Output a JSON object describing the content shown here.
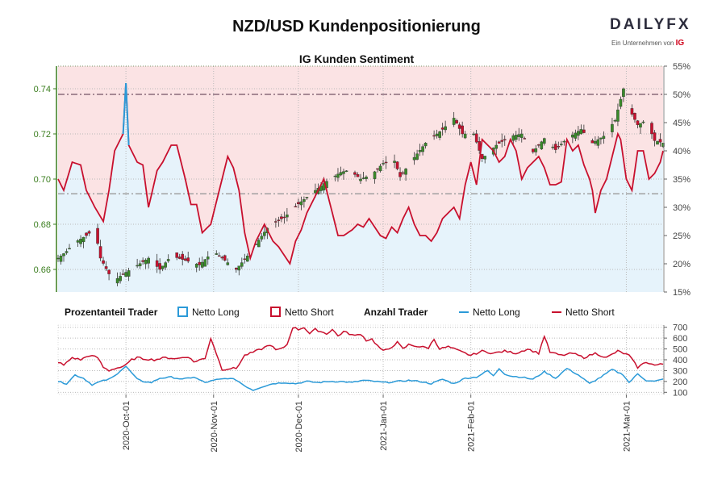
{
  "header": {
    "title": "NZD/USD Kundenpositionierung",
    "subtitle": "IG Kunden Sentiment",
    "logo_word": "DAILYFX",
    "logo_tag": "Ein Unternehmen von",
    "logo_ig": "IG"
  },
  "legend": {
    "pct_heading": "Prozentanteil Trader",
    "pct_long": "Netto Long",
    "pct_short": "Netto Short",
    "count_heading": "Anzahl Trader",
    "count_long": "Netto Long",
    "count_short": "Netto Short"
  },
  "colors": {
    "long": "#2b9ad8",
    "short": "#c8102e",
    "short_fill": "#fbe3e4",
    "long_fill": "#e6f3fb",
    "up_candle": "#3a8a2a",
    "down_candle": "#c8102e",
    "price_axis": "#3a7d1e"
  },
  "chart_data": [
    {
      "type": "candlestick",
      "title": "IG Kunden Sentiment",
      "x_tick_labels": [
        "2020-Oct-01",
        "2020-Nov-01",
        "2020-Dec-01",
        "2021-Jan-01",
        "2021-Feb-01",
        "2021-Mar-01"
      ],
      "price_axis": {
        "ticks": [
          0.66,
          0.68,
          0.7,
          0.72,
          0.74
        ],
        "ylim": [
          0.65,
          0.75
        ]
      },
      "percent_axis": {
        "ticks": [
          "15%",
          "20%",
          "25%",
          "30%",
          "35%",
          "40%",
          "45%",
          "50%",
          "55%"
        ],
        "ylim": [
          15,
          55
        ]
      },
      "reference_lines": [
        0.7375,
        0.6935
      ],
      "price_close_anchors": [
        [
          0,
          0.665
        ],
        [
          3,
          0.668
        ],
        [
          6,
          0.672
        ],
        [
          10,
          0.675
        ],
        [
          13,
          0.678
        ],
        [
          15,
          0.665
        ],
        [
          18,
          0.658
        ],
        [
          20,
          0.655
        ],
        [
          23,
          0.658
        ],
        [
          27,
          0.661
        ],
        [
          32,
          0.665
        ],
        [
          36,
          0.66
        ],
        [
          40,
          0.666
        ],
        [
          45,
          0.664
        ],
        [
          50,
          0.662
        ],
        [
          55,
          0.668
        ],
        [
          60,
          0.663
        ],
        [
          63,
          0.66
        ],
        [
          67,
          0.666
        ],
        [
          71,
          0.673
        ],
        [
          75,
          0.68
        ],
        [
          80,
          0.683
        ],
        [
          85,
          0.689
        ],
        [
          90,
          0.694
        ],
        [
          95,
          0.699
        ],
        [
          100,
          0.703
        ],
        [
          103,
          0.704
        ],
        [
          107,
          0.7
        ],
        [
          111,
          0.702
        ],
        [
          115,
          0.707
        ],
        [
          119,
          0.708
        ],
        [
          121,
          0.701
        ],
        [
          125,
          0.708
        ],
        [
          130,
          0.716
        ],
        [
          136,
          0.722
        ],
        [
          140,
          0.727
        ],
        [
          143,
          0.72
        ],
        [
          147,
          0.72
        ],
        [
          150,
          0.709
        ],
        [
          155,
          0.715
        ],
        [
          160,
          0.719
        ],
        [
          164,
          0.72
        ],
        [
          168,
          0.712
        ],
        [
          172,
          0.718
        ],
        [
          176,
          0.713
        ],
        [
          180,
          0.718
        ],
        [
          185,
          0.722
        ],
        [
          189,
          0.716
        ],
        [
          193,
          0.719
        ],
        [
          197,
          0.726
        ],
        [
          200,
          0.74
        ],
        [
          202,
          0.731
        ],
        [
          205,
          0.724
        ],
        [
          208,
          0.726
        ],
        [
          211,
          0.717
        ],
        [
          214,
          0.716
        ]
      ],
      "net_long_pct_anchors": [
        [
          0,
          35
        ],
        [
          2,
          33
        ],
        [
          5,
          38
        ],
        [
          8,
          37.5
        ],
        [
          10,
          33
        ],
        [
          13,
          30
        ],
        [
          16,
          27.5
        ],
        [
          18,
          33
        ],
        [
          20,
          40
        ],
        [
          23,
          43
        ],
        [
          24,
          52
        ],
        [
          25,
          41
        ],
        [
          28,
          38
        ],
        [
          30,
          37.5
        ],
        [
          32,
          30
        ],
        [
          35,
          36.5
        ],
        [
          37,
          38
        ],
        [
          40,
          41
        ],
        [
          42,
          41
        ],
        [
          45,
          35
        ],
        [
          47,
          30.5
        ],
        [
          49,
          30.5
        ],
        [
          51,
          25.5
        ],
        [
          54,
          27
        ],
        [
          57,
          33
        ],
        [
          60,
          39
        ],
        [
          62,
          37
        ],
        [
          64,
          33
        ],
        [
          66,
          25.5
        ],
        [
          68,
          21
        ],
        [
          70,
          24
        ],
        [
          73,
          27
        ],
        [
          76,
          24
        ],
        [
          78,
          23
        ],
        [
          80,
          21.5
        ],
        [
          82,
          20
        ],
        [
          84,
          24
        ],
        [
          86,
          26
        ],
        [
          88,
          29
        ],
        [
          90,
          31
        ],
        [
          92,
          33
        ],
        [
          94,
          35
        ],
        [
          97,
          29
        ],
        [
          99,
          25
        ],
        [
          101,
          25
        ],
        [
          104,
          26
        ],
        [
          106,
          27
        ],
        [
          108,
          26.5
        ],
        [
          110,
          28
        ],
        [
          112,
          26.5
        ],
        [
          114,
          25
        ],
        [
          116,
          24.5
        ],
        [
          118,
          26.5
        ],
        [
          120,
          25.5
        ],
        [
          122,
          28
        ],
        [
          124,
          30
        ],
        [
          126,
          27
        ],
        [
          128,
          25
        ],
        [
          130,
          25
        ],
        [
          132,
          24
        ],
        [
          134,
          25.5
        ],
        [
          136,
          28
        ],
        [
          138,
          29
        ],
        [
          140,
          30
        ],
        [
          142,
          28
        ],
        [
          144,
          34
        ],
        [
          146,
          38
        ],
        [
          148,
          34
        ],
        [
          150,
          42
        ],
        [
          152,
          41
        ],
        [
          154,
          40
        ],
        [
          156,
          38
        ],
        [
          158,
          39
        ],
        [
          160,
          42
        ],
        [
          162,
          40
        ],
        [
          164,
          35
        ],
        [
          166,
          37
        ],
        [
          168,
          38
        ],
        [
          170,
          39
        ],
        [
          172,
          37
        ],
        [
          174,
          34
        ],
        [
          176,
          34
        ],
        [
          178,
          34.5
        ],
        [
          180,
          42
        ],
        [
          182,
          40
        ],
        [
          184,
          41
        ],
        [
          186,
          37.5
        ],
        [
          188,
          35
        ],
        [
          189,
          33
        ],
        [
          190,
          29
        ],
        [
          192,
          33
        ],
        [
          194,
          35
        ],
        [
          196,
          39
        ],
        [
          198,
          43
        ],
        [
          199,
          42
        ],
        [
          201,
          35
        ],
        [
          203,
          33
        ],
        [
          205,
          40
        ],
        [
          207,
          40
        ],
        [
          209,
          35
        ],
        [
          211,
          36
        ],
        [
          213,
          38
        ],
        [
          214,
          40
        ]
      ]
    },
    {
      "type": "line",
      "title": "Anzahl Trader",
      "y_ticks": [
        100,
        200,
        300,
        400,
        500,
        600,
        700
      ],
      "ylim": [
        80,
        720
      ],
      "series": [
        {
          "name": "Netto Long",
          "anchors": [
            [
              0,
              200
            ],
            [
              3,
              180
            ],
            [
              6,
              260
            ],
            [
              9,
              230
            ],
            [
              12,
              170
            ],
            [
              15,
              200
            ],
            [
              18,
              220
            ],
            [
              20,
              250
            ],
            [
              22,
              300
            ],
            [
              24,
              340
            ],
            [
              26,
              280
            ],
            [
              28,
              220
            ],
            [
              30,
              200
            ],
            [
              33,
              190
            ],
            [
              36,
              230
            ],
            [
              40,
              240
            ],
            [
              44,
              220
            ],
            [
              48,
              240
            ],
            [
              52,
              190
            ],
            [
              56,
              215
            ],
            [
              60,
              230
            ],
            [
              63,
              215
            ],
            [
              66,
              160
            ],
            [
              69,
              120
            ],
            [
              72,
              150
            ],
            [
              76,
              180
            ],
            [
              80,
              190
            ],
            [
              84,
              180
            ],
            [
              88,
              200
            ],
            [
              92,
              190
            ],
            [
              96,
              200
            ],
            [
              100,
              200
            ],
            [
              104,
              190
            ],
            [
              108,
              210
            ],
            [
              112,
              200
            ],
            [
              116,
              190
            ],
            [
              120,
              200
            ],
            [
              124,
              210
            ],
            [
              128,
              200
            ],
            [
              132,
              180
            ],
            [
              136,
              220
            ],
            [
              140,
              180
            ],
            [
              144,
              230
            ],
            [
              148,
              240
            ],
            [
              152,
              300
            ],
            [
              154,
              250
            ],
            [
              156,
              320
            ],
            [
              158,
              270
            ],
            [
              160,
              250
            ],
            [
              164,
              240
            ],
            [
              168,
              220
            ],
            [
              172,
              290
            ],
            [
              176,
              230
            ],
            [
              180,
              320
            ],
            [
              184,
              260
            ],
            [
              188,
              180
            ],
            [
              192,
              240
            ],
            [
              196,
              310
            ],
            [
              200,
              260
            ],
            [
              202,
              190
            ],
            [
              205,
              270
            ],
            [
              208,
              210
            ],
            [
              211,
              200
            ],
            [
              214,
              220
            ]
          ]
        },
        {
          "name": "Netto Short",
          "anchors": [
            [
              0,
              380
            ],
            [
              2,
              350
            ],
            [
              5,
              420
            ],
            [
              8,
              400
            ],
            [
              11,
              440
            ],
            [
              14,
              420
            ],
            [
              16,
              330
            ],
            [
              18,
              300
            ],
            [
              20,
              320
            ],
            [
              22,
              330
            ],
            [
              24,
              350
            ],
            [
              26,
              400
            ],
            [
              28,
              420
            ],
            [
              30,
              410
            ],
            [
              34,
              400
            ],
            [
              38,
              420
            ],
            [
              42,
              410
            ],
            [
              46,
              430
            ],
            [
              48,
              380
            ],
            [
              50,
              400
            ],
            [
              52,
              410
            ],
            [
              54,
              600
            ],
            [
              55,
              530
            ],
            [
              58,
              310
            ],
            [
              61,
              320
            ],
            [
              63,
              320
            ],
            [
              66,
              440
            ],
            [
              69,
              470
            ],
            [
              72,
              500
            ],
            [
              75,
              540
            ],
            [
              77,
              490
            ],
            [
              79,
              500
            ],
            [
              81,
              540
            ],
            [
              83,
              700
            ],
            [
              85,
              680
            ],
            [
              87,
              700
            ],
            [
              89,
              640
            ],
            [
              91,
              680
            ],
            [
              93,
              660
            ],
            [
              95,
              640
            ],
            [
              97,
              680
            ],
            [
              99,
              620
            ],
            [
              101,
              660
            ],
            [
              103,
              640
            ],
            [
              105,
              620
            ],
            [
              107,
              640
            ],
            [
              109,
              580
            ],
            [
              111,
              590
            ],
            [
              113,
              530
            ],
            [
              115,
              480
            ],
            [
              117,
              500
            ],
            [
              120,
              560
            ],
            [
              122,
              500
            ],
            [
              124,
              540
            ],
            [
              128,
              520
            ],
            [
              131,
              510
            ],
            [
              133,
              590
            ],
            [
              135,
              500
            ],
            [
              138,
              520
            ],
            [
              142,
              480
            ],
            [
              146,
              440
            ],
            [
              150,
              480
            ],
            [
              154,
              460
            ],
            [
              158,
              480
            ],
            [
              162,
              460
            ],
            [
              166,
              500
            ],
            [
              170,
              460
            ],
            [
              172,
              620
            ],
            [
              174,
              470
            ],
            [
              178,
              440
            ],
            [
              182,
              460
            ],
            [
              186,
              420
            ],
            [
              190,
              460
            ],
            [
              194,
              420
            ],
            [
              198,
              480
            ],
            [
              202,
              440
            ],
            [
              205,
              330
            ],
            [
              208,
              380
            ],
            [
              211,
              350
            ],
            [
              214,
              360
            ]
          ]
        }
      ]
    }
  ]
}
